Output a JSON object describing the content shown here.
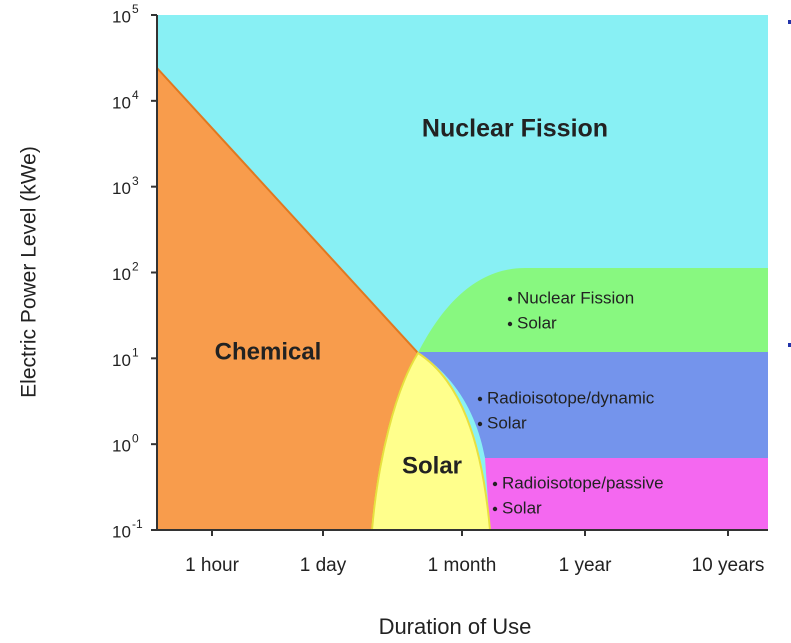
{
  "y_axis": {
    "title": "Electric Power Level (kWe)",
    "ticks": [
      {
        "base": "10",
        "exp": "5"
      },
      {
        "base": "10",
        "exp": "4"
      },
      {
        "base": "10",
        "exp": "3"
      },
      {
        "base": "10",
        "exp": "2"
      },
      {
        "base": "10",
        "exp": "1"
      },
      {
        "base": "10",
        "exp": "0"
      },
      {
        "base": "10",
        "exp": "-1"
      }
    ]
  },
  "x_axis": {
    "title": "Duration of Use",
    "ticks": [
      "1 hour",
      "1 day",
      "1 month",
      "1 year",
      "10 years"
    ]
  },
  "regions": {
    "nuclear": "Nuclear Fission",
    "chemical": "Chemical",
    "solar": "Solar",
    "green_items": [
      "Nuclear Fission",
      "Solar"
    ],
    "blue_items": [
      "Radioisotope/dynamic",
      "Solar"
    ],
    "magenta_items": [
      "Radioisotope/passive",
      "Solar"
    ]
  }
}
